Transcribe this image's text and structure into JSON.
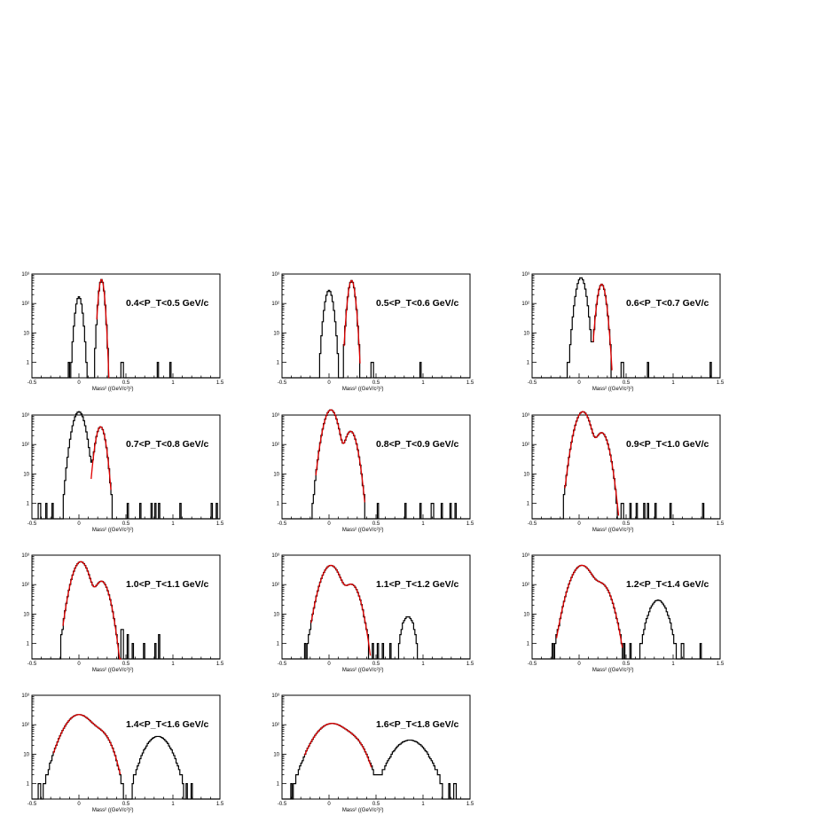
{
  "chart_data": [
    {
      "type": "histogram",
      "title": "0.4<P_T<0.5 GeV/c",
      "xlabel": "Mass² ((GeV/c²)²)",
      "xlim": [
        -0.5,
        1.5
      ],
      "ylim": [
        0.3,
        1000
      ],
      "yscale": "log",
      "xticks": [
        "-0.5",
        "0",
        "0.5",
        "1",
        "1.5"
      ],
      "yticks": [
        "1",
        "10",
        "10²",
        "10³"
      ],
      "peaks": [
        {
          "center": 0.0,
          "height": 170,
          "width": 0.025
        },
        {
          "center": 0.24,
          "height": 650,
          "width": 0.02
        }
      ],
      "tail": [
        [
          -0.1,
          1
        ],
        [
          0.46,
          1
        ],
        [
          0.84,
          1
        ],
        [
          0.98,
          1
        ]
      ],
      "fit": [
        {
          "center": 0.24,
          "height": 650,
          "width": 0.02
        }
      ],
      "fit_range": [
        0.19,
        0.32
      ]
    },
    {
      "type": "histogram",
      "title": "0.5<P_T<0.6 GeV/c",
      "xlabel": "Mass² ((GeV/c²)²)",
      "xlim": [
        -0.5,
        1.5
      ],
      "ylim": [
        0.3,
        1000
      ],
      "yscale": "log",
      "xticks": [
        "-0.5",
        "0",
        "0.5",
        "1",
        "1.5"
      ],
      "yticks": [
        "1",
        "10",
        "10²",
        "10³"
      ],
      "peaks": [
        {
          "center": 0.0,
          "height": 280,
          "width": 0.03
        },
        {
          "center": 0.24,
          "height": 600,
          "width": 0.025
        }
      ],
      "tail": [
        [
          -0.09,
          1
        ],
        [
          0.46,
          1
        ],
        [
          0.97,
          1
        ]
      ],
      "fit": [
        {
          "center": 0.24,
          "height": 600,
          "width": 0.025
        }
      ],
      "fit_range": [
        0.16,
        0.33
      ]
    },
    {
      "type": "histogram",
      "title": "0.6<P_T<0.7 GeV/c",
      "xlabel": "Mass² ((GeV/c²)²)",
      "xlim": [
        -0.5,
        1.5
      ],
      "ylim": [
        0.3,
        1000
      ],
      "yscale": "log",
      "xticks": [
        "-0.5",
        "0",
        "0.5",
        "1",
        "1.5"
      ],
      "yticks": [
        "1",
        "10",
        "10²",
        "10³"
      ],
      "peaks": [
        {
          "center": 0.02,
          "height": 750,
          "width": 0.035
        },
        {
          "center": 0.24,
          "height": 450,
          "width": 0.03
        }
      ],
      "tail": [
        [
          -0.12,
          1
        ],
        [
          0.46,
          1
        ],
        [
          0.74,
          1
        ],
        [
          1.4,
          1
        ]
      ],
      "fit": [
        {
          "center": 0.24,
          "height": 450,
          "width": 0.03
        }
      ],
      "fit_range": [
        0.15,
        0.35
      ]
    },
    {
      "type": "histogram",
      "title": "0.7<P_T<0.8 GeV/c",
      "xlabel": "Mass² ((GeV/c²)²)",
      "xlim": [
        -0.5,
        1.5
      ],
      "ylim": [
        0.3,
        1000
      ],
      "yscale": "log",
      "xticks": [
        "-0.5",
        "0",
        "0.5",
        "1",
        "1.5"
      ],
      "yticks": [
        "1",
        "10",
        "10²",
        "10³"
      ],
      "peaks": [
        {
          "center": 0.0,
          "height": 1300,
          "width": 0.045
        },
        {
          "center": 0.23,
          "height": 400,
          "width": 0.035
        }
      ],
      "tail": [
        [
          -0.42,
          1
        ],
        [
          -0.35,
          1
        ],
        [
          -0.28,
          1
        ],
        [
          0.52,
          1
        ],
        [
          0.65,
          1
        ],
        [
          0.78,
          1
        ],
        [
          0.82,
          1
        ],
        [
          0.86,
          1
        ],
        [
          0.9,
          1
        ],
        [
          1.08,
          1
        ],
        [
          1.42,
          1
        ],
        [
          1.47,
          1
        ]
      ],
      "fit": [
        {
          "center": 0.23,
          "height": 400,
          "width": 0.035
        }
      ],
      "fit_range": [
        0.13,
        0.34
      ]
    },
    {
      "type": "histogram",
      "title": "0.8<P_T<0.9 GeV/c",
      "xlabel": "Mass² ((GeV/c²)²)",
      "xlim": [
        -0.5,
        1.5
      ],
      "ylim": [
        0.3,
        1000
      ],
      "yscale": "log",
      "xticks": [
        "-0.5",
        "0",
        "0.5",
        "1",
        "1.5"
      ],
      "yticks": [
        "1",
        "10",
        "10²",
        "10³"
      ],
      "peaks": [
        {
          "center": 0.02,
          "height": 1500,
          "width": 0.05
        },
        {
          "center": 0.23,
          "height": 280,
          "width": 0.045
        }
      ],
      "tail": [
        [
          -0.1,
          1
        ],
        [
          0.52,
          1
        ],
        [
          0.66,
          1
        ],
        [
          0.82,
          1
        ],
        [
          0.97,
          1
        ],
        [
          1.1,
          1
        ],
        [
          1.2,
          1
        ],
        [
          1.3,
          1
        ],
        [
          1.35,
          1
        ]
      ],
      "fit": [
        {
          "center": 0.02,
          "height": 1500,
          "width": 0.05
        },
        {
          "center": 0.23,
          "height": 280,
          "width": 0.045
        }
      ],
      "fit_range": [
        -0.14,
        0.38
      ]
    },
    {
      "type": "histogram",
      "title": "0.9<P_T<1.0 GeV/c",
      "xlabel": "Mass² ((GeV/c²)²)",
      "xlim": [
        -0.5,
        1.5
      ],
      "ylim": [
        0.3,
        1000
      ],
      "yscale": "log",
      "xticks": [
        "-0.5",
        "0",
        "0.5",
        "1",
        "1.5"
      ],
      "yticks": [
        "1",
        "10",
        "10²",
        "10³"
      ],
      "peaks": [
        {
          "center": 0.04,
          "height": 1300,
          "width": 0.055
        },
        {
          "center": 0.24,
          "height": 250,
          "width": 0.05
        }
      ],
      "tail": [
        [
          -0.16,
          1
        ],
        [
          -0.12,
          3
        ],
        [
          0.46,
          1
        ],
        [
          0.55,
          1
        ],
        [
          0.62,
          1
        ],
        [
          0.7,
          1
        ],
        [
          0.74,
          1
        ],
        [
          0.82,
          1
        ],
        [
          0.9,
          1
        ],
        [
          0.98,
          1
        ],
        [
          1.32,
          1
        ]
      ],
      "fit": [
        {
          "center": 0.04,
          "height": 1300,
          "width": 0.055
        },
        {
          "center": 0.24,
          "height": 250,
          "width": 0.05
        }
      ],
      "fit_range": [
        -0.15,
        0.42
      ]
    },
    {
      "type": "histogram",
      "title": "1.0<P_T<1.1 GeV/c",
      "xlabel": "Mass² ((GeV/c²)²)",
      "xlim": [
        -0.5,
        1.5
      ],
      "ylim": [
        0.3,
        1000
      ],
      "yscale": "log",
      "xticks": [
        "-0.5",
        "0",
        "0.5",
        "1",
        "1.5"
      ],
      "yticks": [
        "1",
        "10",
        "10²",
        "10³"
      ],
      "peaks": [
        {
          "center": 0.02,
          "height": 600,
          "width": 0.06
        },
        {
          "center": 0.24,
          "height": 130,
          "width": 0.055
        }
      ],
      "tail": [
        [
          -0.18,
          1
        ],
        [
          -0.15,
          1
        ],
        [
          0.46,
          3
        ],
        [
          0.52,
          2
        ],
        [
          0.58,
          1
        ],
        [
          0.7,
          1
        ],
        [
          0.82,
          1
        ],
        [
          0.86,
          2
        ],
        [
          0.9,
          1
        ]
      ],
      "fit": [
        {
          "center": 0.02,
          "height": 600,
          "width": 0.06
        },
        {
          "center": 0.24,
          "height": 130,
          "width": 0.055
        }
      ],
      "fit_range": [
        -0.17,
        0.45
      ]
    },
    {
      "type": "histogram",
      "title": "1.1<P_T<1.2 GeV/c",
      "xlabel": "Mass² ((GeV/c²)²)",
      "xlim": [
        -0.5,
        1.5
      ],
      "ylim": [
        0.3,
        1000
      ],
      "yscale": "log",
      "xticks": [
        "-0.5",
        "0",
        "0.5",
        "1",
        "1.5"
      ],
      "yticks": [
        "1",
        "10",
        "10²",
        "10³"
      ],
      "peaks": [
        {
          "center": 0.02,
          "height": 450,
          "width": 0.07
        },
        {
          "center": 0.24,
          "height": 100,
          "width": 0.06
        },
        {
          "center": 0.84,
          "height": 8,
          "width": 0.05
        }
      ],
      "tail": [
        [
          -0.25,
          1
        ],
        [
          -0.18,
          1
        ],
        [
          0.47,
          1
        ],
        [
          0.52,
          1
        ],
        [
          0.58,
          1
        ],
        [
          0.65,
          1
        ]
      ],
      "fit": [
        {
          "center": 0.02,
          "height": 450,
          "width": 0.07
        },
        {
          "center": 0.24,
          "height": 100,
          "width": 0.06
        }
      ],
      "fit_range": [
        -0.19,
        0.44
      ]
    },
    {
      "type": "histogram",
      "title": "1.2<P_T<1.4 GeV/c",
      "xlabel": "Mass² ((GeV/c²)²)",
      "xlim": [
        -0.5,
        1.5
      ],
      "ylim": [
        0.3,
        1000
      ],
      "yscale": "log",
      "xticks": [
        "-0.5",
        "0",
        "0.5",
        "1",
        "1.5"
      ],
      "yticks": [
        "1",
        "10",
        "10²",
        "10³"
      ],
      "peaks": [
        {
          "center": 0.03,
          "height": 450,
          "width": 0.08
        },
        {
          "center": 0.24,
          "height": 100,
          "width": 0.07
        },
        {
          "center": 0.84,
          "height": 30,
          "width": 0.07
        }
      ],
      "tail": [
        [
          -0.28,
          1
        ],
        [
          -0.22,
          2
        ],
        [
          0.48,
          1
        ],
        [
          0.55,
          1
        ],
        [
          1.1,
          1
        ],
        [
          1.3,
          1
        ]
      ],
      "fit": [
        {
          "center": 0.03,
          "height": 450,
          "width": 0.08
        },
        {
          "center": 0.24,
          "height": 100,
          "width": 0.07
        }
      ],
      "fit_range": [
        -0.24,
        0.46
      ]
    },
    {
      "type": "histogram",
      "title": "1.4<P_T<1.6 GeV/c",
      "xlabel": "Mass² ((GeV/c²)²)",
      "xlim": [
        -0.5,
        1.5
      ],
      "ylim": [
        0.3,
        1000
      ],
      "yscale": "log",
      "xticks": [
        "-0.5",
        "0",
        "0.5",
        "1",
        "1.5"
      ],
      "yticks": [
        "1",
        "10",
        "10²",
        "10³"
      ],
      "peaks": [
        {
          "center": 0.0,
          "height": 220,
          "width": 0.11
        },
        {
          "center": 0.24,
          "height": 45,
          "width": 0.08
        },
        {
          "center": 0.84,
          "height": 40,
          "width": 0.1
        }
      ],
      "tail": [
        [
          -0.42,
          1
        ],
        [
          -0.37,
          1
        ],
        [
          -0.31,
          1
        ],
        [
          1.15,
          1
        ],
        [
          1.2,
          1
        ]
      ],
      "fit": [
        {
          "center": 0.0,
          "height": 220,
          "width": 0.11
        },
        {
          "center": 0.24,
          "height": 45,
          "width": 0.08
        }
      ],
      "fit_range": [
        -0.27,
        0.44
      ]
    },
    {
      "type": "histogram",
      "title": "1.6<P_T<1.8 GeV/c",
      "xlabel": "Mass² ((GeV/c²)²)",
      "xlim": [
        -0.5,
        1.5
      ],
      "ylim": [
        0.3,
        1000
      ],
      "yscale": "log",
      "xticks": [
        "-0.5",
        "0",
        "0.5",
        "1",
        "1.5"
      ],
      "yticks": [
        "1",
        "10",
        "10²",
        "10³"
      ],
      "peaks": [
        {
          "center": 0.03,
          "height": 110,
          "width": 0.13
        },
        {
          "center": 0.27,
          "height": 22,
          "width": 0.09
        },
        {
          "center": 0.86,
          "height": 30,
          "width": 0.13
        }
      ],
      "tail": [
        [
          -0.4,
          1
        ],
        [
          -0.33,
          2
        ],
        [
          0.56,
          2
        ],
        [
          0.65,
          3
        ],
        [
          1.28,
          1
        ],
        [
          1.34,
          1
        ]
      ],
      "fit": [
        {
          "center": 0.03,
          "height": 110,
          "width": 0.13
        },
        {
          "center": 0.27,
          "height": 22,
          "width": 0.09
        }
      ],
      "fit_range": [
        -0.26,
        0.45
      ]
    }
  ]
}
